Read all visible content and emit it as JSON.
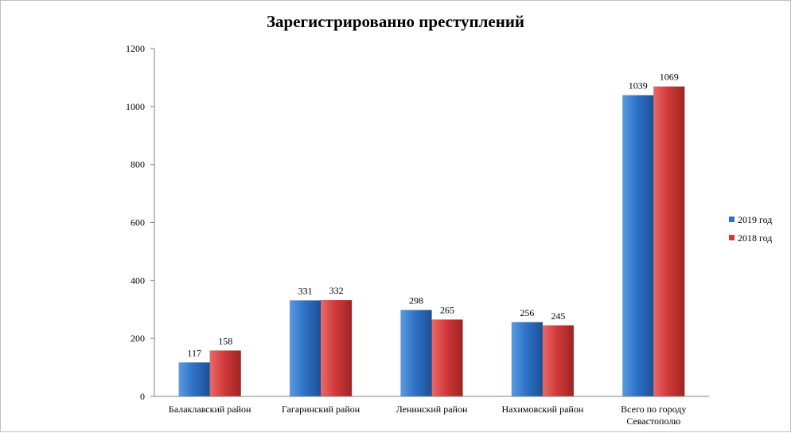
{
  "chart_data": {
    "type": "bar",
    "title": "Зарегистрированно преступлений",
    "xlabel": "",
    "ylabel": "",
    "ylim": [
      0,
      1200
    ],
    "yticks": [
      0,
      200,
      400,
      600,
      800,
      1000,
      1200
    ],
    "categories": [
      [
        "Балаклавский  район"
      ],
      [
        "Гагаринский район"
      ],
      [
        "Ленинский район"
      ],
      [
        "Нахимовский  район"
      ],
      [
        "Всего по городу",
        "Севастополю"
      ]
    ],
    "series": [
      {
        "name": "2019  год",
        "values": [
          117,
          331,
          298,
          256,
          1039
        ],
        "color": "#2e6fc0"
      },
      {
        "name": "2018  год",
        "values": [
          158,
          332,
          265,
          245,
          1069
        ],
        "color": "#d23a3a"
      }
    ],
    "legend_position": "right",
    "grid": false
  }
}
